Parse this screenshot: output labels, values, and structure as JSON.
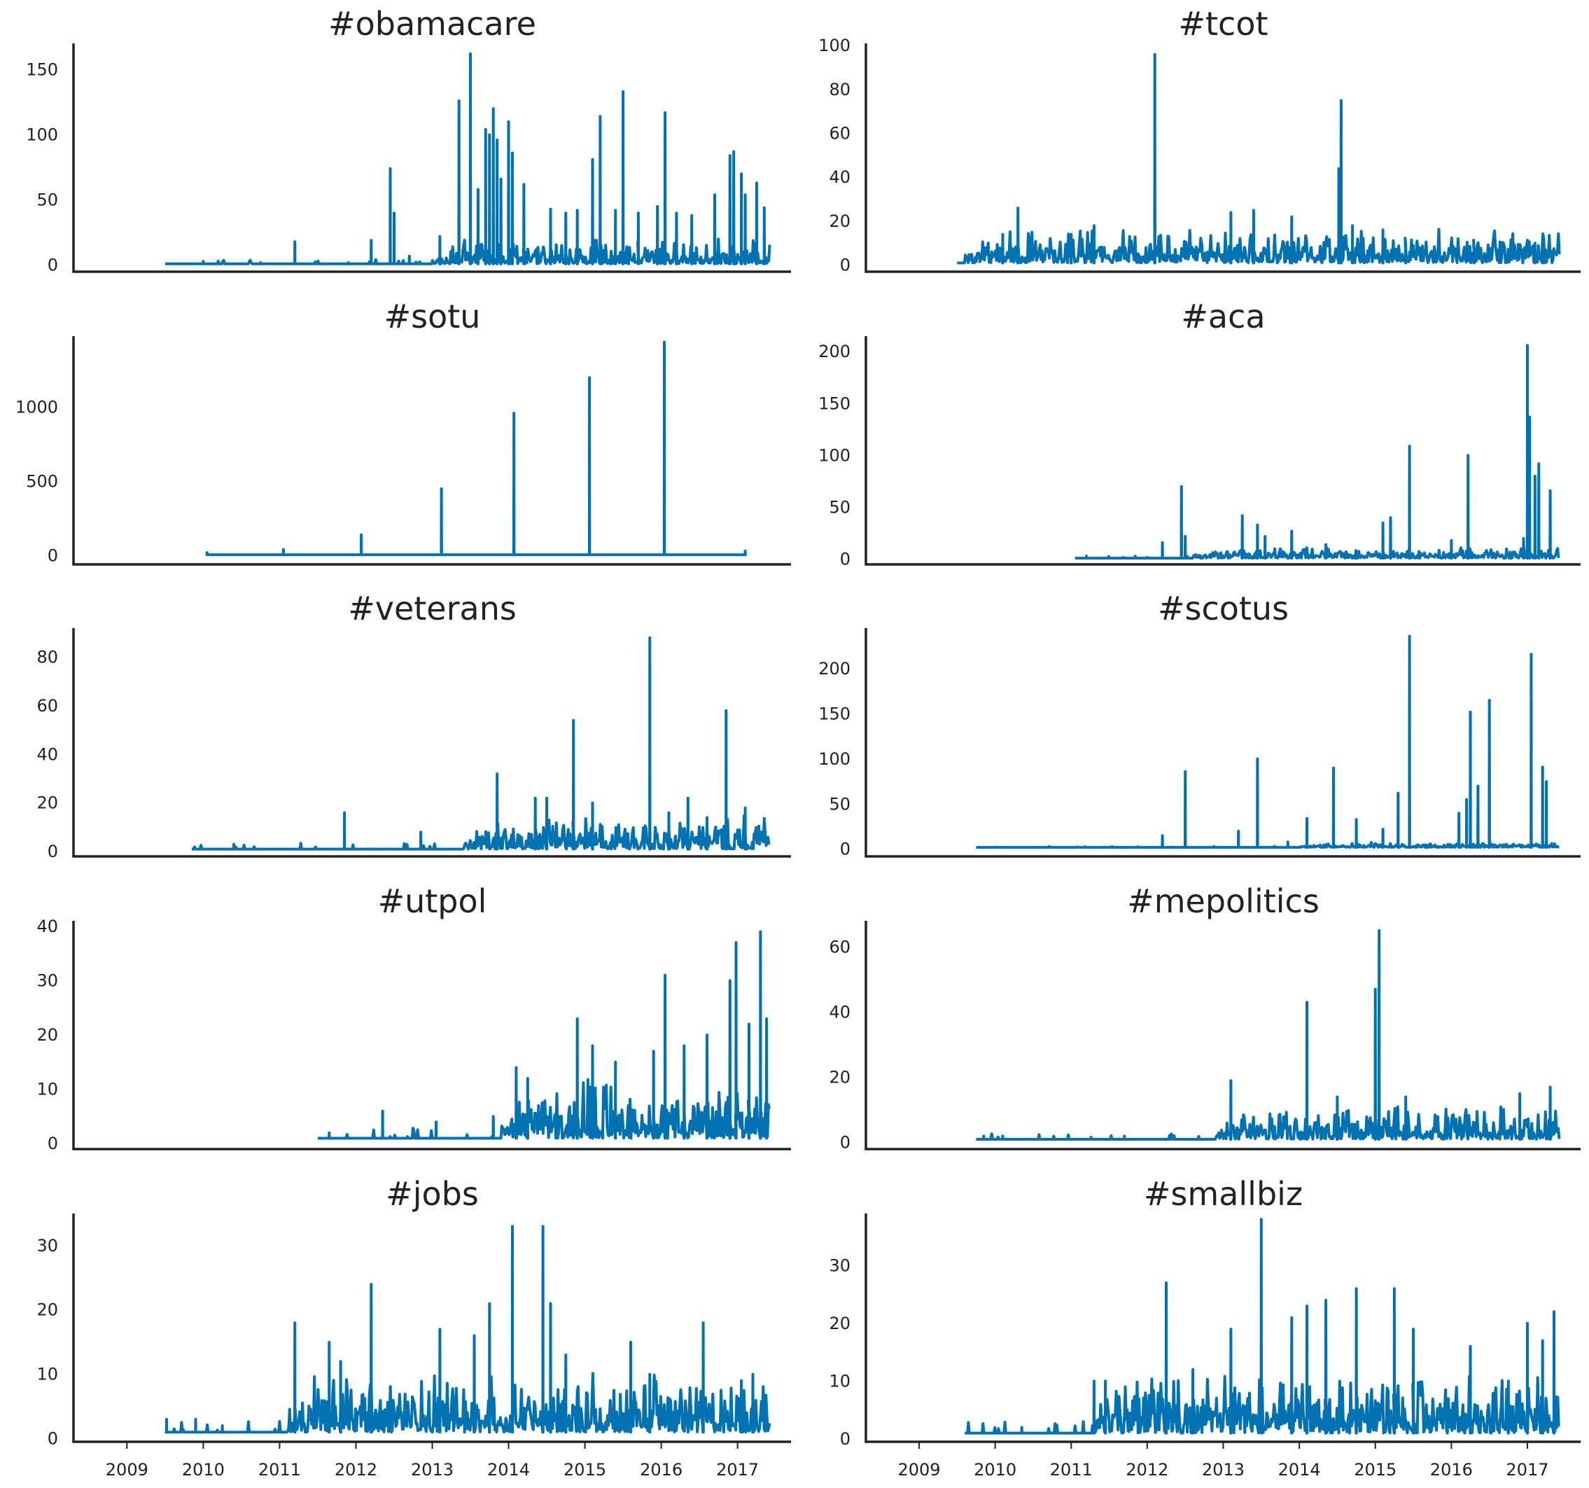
{
  "colors": {
    "line": "#0072b2",
    "axis": "#222222",
    "text": "#222222",
    "background": "#ffffff"
  },
  "x_axis": {
    "ticks": [
      2009,
      2010,
      2011,
      2012,
      2013,
      2014,
      2015,
      2016,
      2017
    ],
    "range": [
      2008.3,
      2017.7
    ],
    "labels_on_bottom_row_only": true
  },
  "chart_data": [
    {
      "type": "line",
      "title": "#obamacare",
      "ylim": [
        -5,
        170
      ],
      "yticks": [
        0,
        50,
        100,
        150
      ],
      "x_start": 2009.5,
      "x_end": 2017.42,
      "baseline": 1,
      "spikes": [
        [
          2010.0,
          3
        ],
        [
          2010.75,
          2
        ],
        [
          2011.2,
          18
        ],
        [
          2011.9,
          2
        ],
        [
          2012.2,
          19
        ],
        [
          2012.45,
          74
        ],
        [
          2012.5,
          40
        ],
        [
          2012.7,
          7
        ],
        [
          2013.1,
          22
        ],
        [
          2013.35,
          126
        ],
        [
          2013.5,
          162
        ],
        [
          2013.6,
          58
        ],
        [
          2013.7,
          104
        ],
        [
          2013.75,
          100
        ],
        [
          2013.8,
          120
        ],
        [
          2013.85,
          96
        ],
        [
          2013.9,
          66
        ],
        [
          2014.0,
          110
        ],
        [
          2014.05,
          86
        ],
        [
          2014.2,
          62
        ],
        [
          2014.55,
          43
        ],
        [
          2014.75,
          40
        ],
        [
          2014.9,
          42
        ],
        [
          2015.1,
          81
        ],
        [
          2015.2,
          114
        ],
        [
          2015.4,
          42
        ],
        [
          2015.5,
          133
        ],
        [
          2015.7,
          40
        ],
        [
          2015.95,
          45
        ],
        [
          2016.05,
          117
        ],
        [
          2016.2,
          40
        ],
        [
          2016.4,
          38
        ],
        [
          2016.7,
          54
        ],
        [
          2016.9,
          84
        ],
        [
          2016.95,
          87
        ],
        [
          2017.05,
          70
        ],
        [
          2017.1,
          54
        ],
        [
          2017.25,
          63
        ],
        [
          2017.35,
          44
        ]
      ],
      "noise_max": 14,
      "noise_start": 2013.0
    },
    {
      "type": "line",
      "title": "#tcot",
      "ylim": [
        -3,
        101
      ],
      "yticks": [
        0,
        20,
        40,
        60,
        80,
        100
      ],
      "x_start": 2009.5,
      "x_end": 2017.42,
      "baseline": 1,
      "spikes": [
        [
          2010.3,
          26
        ],
        [
          2010.1,
          14
        ],
        [
          2011.0,
          14
        ],
        [
          2011.3,
          18
        ],
        [
          2012.1,
          96
        ],
        [
          2013.1,
          24
        ],
        [
          2013.4,
          25
        ],
        [
          2013.9,
          22
        ],
        [
          2014.55,
          75
        ],
        [
          2014.52,
          44
        ],
        [
          2014.7,
          18
        ],
        [
          2015.1,
          16
        ],
        [
          2015.4,
          10
        ],
        [
          2016.3,
          8
        ],
        [
          2017.1,
          10
        ],
        [
          2017.2,
          8
        ]
      ],
      "noise_max": 12,
      "noise_start": 2009.6
    },
    {
      "type": "line",
      "title": "#sotu",
      "ylim": [
        -60,
        1480
      ],
      "yticks": [
        0,
        500,
        1000
      ],
      "x_start": 2010.05,
      "x_end": 2017.12,
      "baseline": 5,
      "spikes": [
        [
          2010.05,
          20
        ],
        [
          2011.05,
          40
        ],
        [
          2012.07,
          140
        ],
        [
          2013.12,
          450
        ],
        [
          2014.07,
          960
        ],
        [
          2015.06,
          1200
        ],
        [
          2016.04,
          1440
        ],
        [
          2017.1,
          30
        ]
      ],
      "noise_max": 0,
      "noise_start": 2017.5
    },
    {
      "type": "line",
      "title": "#aca",
      "ylim": [
        -5,
        215
      ],
      "yticks": [
        0,
        50,
        100,
        150,
        200
      ],
      "x_start": 2011.05,
      "x_end": 2017.42,
      "baseline": 1,
      "spikes": [
        [
          2011.2,
          3
        ],
        [
          2012.2,
          16
        ],
        [
          2012.45,
          70
        ],
        [
          2012.5,
          22
        ],
        [
          2013.25,
          42
        ],
        [
          2013.45,
          33
        ],
        [
          2013.55,
          22
        ],
        [
          2013.9,
          27
        ],
        [
          2014.35,
          14
        ],
        [
          2015.1,
          35
        ],
        [
          2015.2,
          40
        ],
        [
          2015.45,
          109
        ],
        [
          2016.0,
          18
        ],
        [
          2016.22,
          100
        ],
        [
          2016.95,
          20
        ],
        [
          2017.0,
          206
        ],
        [
          2017.03,
          137
        ],
        [
          2017.1,
          80
        ],
        [
          2017.15,
          92
        ],
        [
          2017.3,
          66
        ]
      ],
      "noise_max": 8,
      "noise_start": 2012.6
    },
    {
      "type": "line",
      "title": "#veterans",
      "ylim": [
        -2,
        92
      ],
      "yticks": [
        0,
        20,
        40,
        60,
        80
      ],
      "x_start": 2009.85,
      "x_end": 2017.42,
      "baseline": 1,
      "spikes": [
        [
          2010.4,
          3
        ],
        [
          2011.85,
          16
        ],
        [
          2012.85,
          8
        ],
        [
          2013.85,
          32
        ],
        [
          2014.35,
          22
        ],
        [
          2014.5,
          22
        ],
        [
          2014.85,
          54
        ],
        [
          2015.1,
          20
        ],
        [
          2015.85,
          88
        ],
        [
          2016.1,
          16
        ],
        [
          2016.35,
          22
        ],
        [
          2016.6,
          14
        ],
        [
          2016.85,
          58
        ],
        [
          2017.1,
          18
        ]
      ],
      "noise_max": 10,
      "noise_start": 2013.4
    },
    {
      "type": "line",
      "title": "#scotus",
      "ylim": [
        -8,
        245
      ],
      "yticks": [
        0,
        50,
        100,
        150,
        200
      ],
      "x_start": 2009.75,
      "x_end": 2017.42,
      "baseline": 2,
      "spikes": [
        [
          2012.5,
          86
        ],
        [
          2012.2,
          15
        ],
        [
          2013.2,
          20
        ],
        [
          2013.45,
          100
        ],
        [
          2013.85,
          8
        ],
        [
          2014.1,
          34
        ],
        [
          2014.45,
          90
        ],
        [
          2014.75,
          33
        ],
        [
          2015.1,
          22
        ],
        [
          2015.3,
          62
        ],
        [
          2015.45,
          236
        ],
        [
          2016.1,
          40
        ],
        [
          2016.2,
          55
        ],
        [
          2016.25,
          152
        ],
        [
          2016.35,
          70
        ],
        [
          2016.5,
          165
        ],
        [
          2017.05,
          216
        ],
        [
          2017.2,
          91
        ],
        [
          2017.25,
          75
        ]
      ],
      "noise_max": 4,
      "noise_start": 2014.0
    },
    {
      "type": "line",
      "title": "#utpol",
      "ylim": [
        -1,
        41
      ],
      "yticks": [
        0,
        10,
        20,
        30,
        40
      ],
      "x_start": 2011.5,
      "x_end": 2017.42,
      "baseline": 1,
      "spikes": [
        [
          2011.65,
          2
        ],
        [
          2012.35,
          6
        ],
        [
          2013.05,
          4
        ],
        [
          2013.8,
          5
        ],
        [
          2014.1,
          14
        ],
        [
          2014.25,
          12
        ],
        [
          2014.9,
          23
        ],
        [
          2015.1,
          18
        ],
        [
          2015.4,
          15
        ],
        [
          2015.9,
          17
        ],
        [
          2016.05,
          31
        ],
        [
          2016.3,
          18
        ],
        [
          2016.6,
          20
        ],
        [
          2016.9,
          30
        ],
        [
          2016.98,
          37
        ],
        [
          2017.15,
          22
        ],
        [
          2017.3,
          39
        ],
        [
          2017.38,
          23
        ]
      ],
      "noise_max": 8,
      "noise_start": 2013.9
    },
    {
      "type": "line",
      "title": "#mepolitics",
      "ylim": [
        -2,
        68
      ],
      "yticks": [
        0,
        20,
        40,
        60
      ],
      "x_start": 2009.75,
      "x_end": 2017.42,
      "baseline": 1,
      "spikes": [
        [
          2009.85,
          2
        ],
        [
          2010.1,
          2
        ],
        [
          2011.7,
          2
        ],
        [
          2013.1,
          19
        ],
        [
          2014.1,
          43
        ],
        [
          2014.5,
          14
        ],
        [
          2015.0,
          47
        ],
        [
          2015.05,
          65
        ],
        [
          2015.4,
          14
        ],
        [
          2016.9,
          15
        ],
        [
          2017.3,
          17
        ]
      ],
      "noise_max": 8,
      "noise_start": 2012.9
    },
    {
      "type": "line",
      "title": "#jobs",
      "ylim": [
        -0.5,
        35
      ],
      "yticks": [
        0,
        10,
        20,
        30
      ],
      "x_start": 2009.5,
      "x_end": 2017.42,
      "baseline": 1,
      "spikes": [
        [
          2009.52,
          3
        ],
        [
          2009.9,
          3
        ],
        [
          2010.25,
          2
        ],
        [
          2011.2,
          18
        ],
        [
          2011.65,
          15
        ],
        [
          2011.8,
          12
        ],
        [
          2012.2,
          24
        ],
        [
          2013.1,
          17
        ],
        [
          2013.55,
          16
        ],
        [
          2013.75,
          21
        ],
        [
          2014.05,
          33
        ],
        [
          2014.45,
          33
        ],
        [
          2014.55,
          21
        ],
        [
          2014.75,
          13
        ],
        [
          2015.6,
          15
        ],
        [
          2015.85,
          10
        ],
        [
          2016.55,
          18
        ],
        [
          2017.05,
          9
        ],
        [
          2017.2,
          10
        ]
      ],
      "noise_max": 7,
      "noise_start": 2011.1
    },
    {
      "type": "line",
      "title": "#smallbiz",
      "ylim": [
        -0.5,
        39
      ],
      "yticks": [
        0,
        10,
        20,
        30
      ],
      "x_start": 2009.6,
      "x_end": 2017.42,
      "baseline": 1,
      "spikes": [
        [
          2010.35,
          2
        ],
        [
          2011.3,
          10
        ],
        [
          2011.45,
          10
        ],
        [
          2012.25,
          27
        ],
        [
          2012.6,
          12
        ],
        [
          2013.1,
          19
        ],
        [
          2013.5,
          38
        ],
        [
          2013.9,
          21
        ],
        [
          2014.1,
          23
        ],
        [
          2014.35,
          24
        ],
        [
          2014.75,
          26
        ],
        [
          2015.25,
          26
        ],
        [
          2015.5,
          19
        ],
        [
          2016.25,
          16
        ],
        [
          2016.75,
          10
        ],
        [
          2017.0,
          20
        ],
        [
          2017.2,
          17
        ],
        [
          2017.35,
          22
        ]
      ],
      "noise_max": 8,
      "noise_start": 2011.3
    }
  ]
}
